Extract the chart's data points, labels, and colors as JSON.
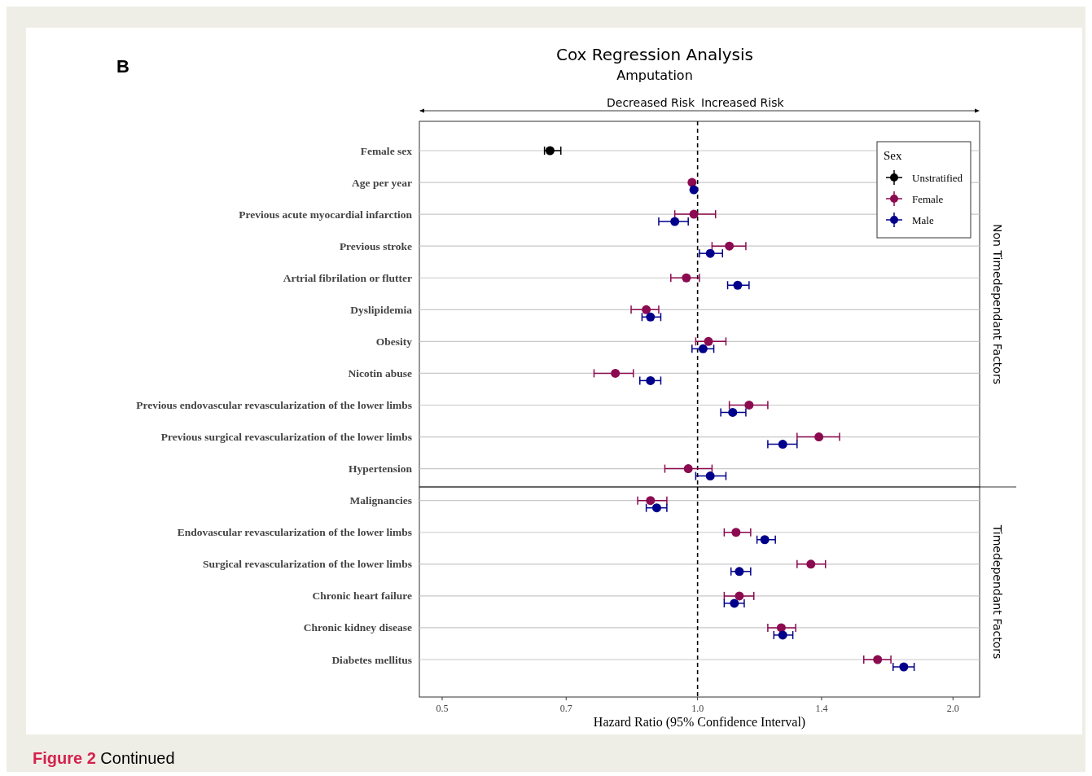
{
  "chart_data": [
    {
      "type": "scatter",
      "orientation": "horizontal",
      "title": "Cox Regression Analysis",
      "subtitle": "Amputation",
      "legend_title": "Sex",
      "categories": [
        "Female sex",
        "Age per year",
        "Previous acute myocardial infarction",
        "Previous stroke",
        "Artrial fibrilation or flutter",
        "Dyslipidemia",
        "Obesity",
        "Nicotin abuse",
        "Previous endovascular revascularization of the lower limbs",
        "Previous surgical revascularization of the lower limbs",
        "Hypertension"
      ],
      "series": [
        {
          "name": "Unstratified",
          "color": "#000000",
          "values": [
            0.67,
            null,
            null,
            null,
            null,
            null,
            null,
            null,
            null,
            null,
            null
          ],
          "errors": [
            [
              0.66,
              0.69
            ],
            null,
            null,
            null,
            null,
            null,
            null,
            null,
            null,
            null,
            null
          ]
        },
        {
          "name": "Female",
          "color": "#8b0a50",
          "values": [
            null,
            0.985,
            0.99,
            1.09,
            0.97,
            0.87,
            1.03,
            0.8,
            1.15,
            1.39,
            0.975
          ],
          "errors": [
            null,
            null,
            [
              0.94,
              1.05
            ],
            [
              1.04,
              1.14
            ],
            [
              0.93,
              1.005
            ],
            [
              0.835,
              0.9
            ],
            [
              0.995,
              1.08
            ],
            [
              0.755,
              0.84
            ],
            [
              1.09,
              1.21
            ],
            [
              1.31,
              1.47
            ],
            [
              0.915,
              1.04
            ]
          ]
        },
        {
          "name": "Male",
          "color": "#00008b",
          "values": [
            null,
            0.99,
            0.94,
            1.035,
            1.115,
            0.88,
            1.015,
            0.88,
            1.1,
            1.26,
            1.035
          ],
          "errors": [
            null,
            null,
            [
              0.9,
              0.975
            ],
            [
              1.005,
              1.07
            ],
            [
              1.085,
              1.15
            ],
            [
              0.86,
              0.905
            ],
            [
              0.985,
              1.045
            ],
            [
              0.855,
              0.905
            ],
            [
              1.065,
              1.14
            ],
            [
              1.21,
              1.31
            ],
            [
              0.995,
              1.08
            ]
          ]
        }
      ],
      "log": "x",
      "xlim": [
        0.47,
        2.15
      ],
      "tick_labels": "y",
      "grid": "y",
      "legend": "top right",
      "marker": "circle",
      "ref_lines": [
        {
          "axis": "x",
          "value": 1,
          "label": null,
          "color": "#000000",
          "line_style": "dashed"
        }
      ],
      "annotations": [
        "B",
        "Decreased Risk",
        "Increased Risk",
        "Non Timedependant Factors"
      ]
    },
    {
      "type": "scatter",
      "orientation": "horizontal",
      "xlabel": "Hazard Ratio (95% Confidence Interval)",
      "categories": [
        "Malignancies",
        "Endovascular revascularization of the lower limbs",
        "Surgical revascularization of the lower limbs",
        "Chronic heart failure",
        "Chronic kidney disease",
        "Diabetes mellitus"
      ],
      "series": [
        {
          "color": "#8b0a50",
          "values": [
            0.88,
            1.11,
            1.36,
            1.12,
            1.255,
            1.63
          ],
          "errors": [
            [
              0.85,
              0.92
            ],
            [
              1.075,
              1.155
            ],
            [
              1.31,
              1.415
            ],
            [
              1.075,
              1.165
            ],
            [
              1.21,
              1.305
            ],
            [
              1.57,
              1.69
            ]
          ]
        },
        {
          "color": "#00008b",
          "values": [
            0.895,
            1.2,
            1.12,
            1.105,
            1.26,
            1.75
          ],
          "errors": [
            [
              0.87,
              0.92
            ],
            [
              1.175,
              1.235
            ],
            [
              1.095,
              1.155
            ],
            [
              1.075,
              1.135
            ],
            [
              1.23,
              1.295
            ],
            [
              1.7,
              1.8
            ]
          ]
        }
      ],
      "log": "x",
      "xlim": [
        0.47,
        2.15
      ],
      "xticks": [
        0.5,
        0.7,
        {
          "value": 1,
          "label": "1.0"
        },
        1.4,
        {
          "value": 2,
          "label": "2.0"
        }
      ],
      "grid": "y",
      "marker": "circle",
      "ref_lines": [
        {
          "axis": "x",
          "value": 1,
          "label": null,
          "color": "#000000",
          "line_style": "dashed"
        }
      ],
      "annotations": [
        "Timedependant Factors",
        "Figure 2 Continued"
      ]
    }
  ]
}
